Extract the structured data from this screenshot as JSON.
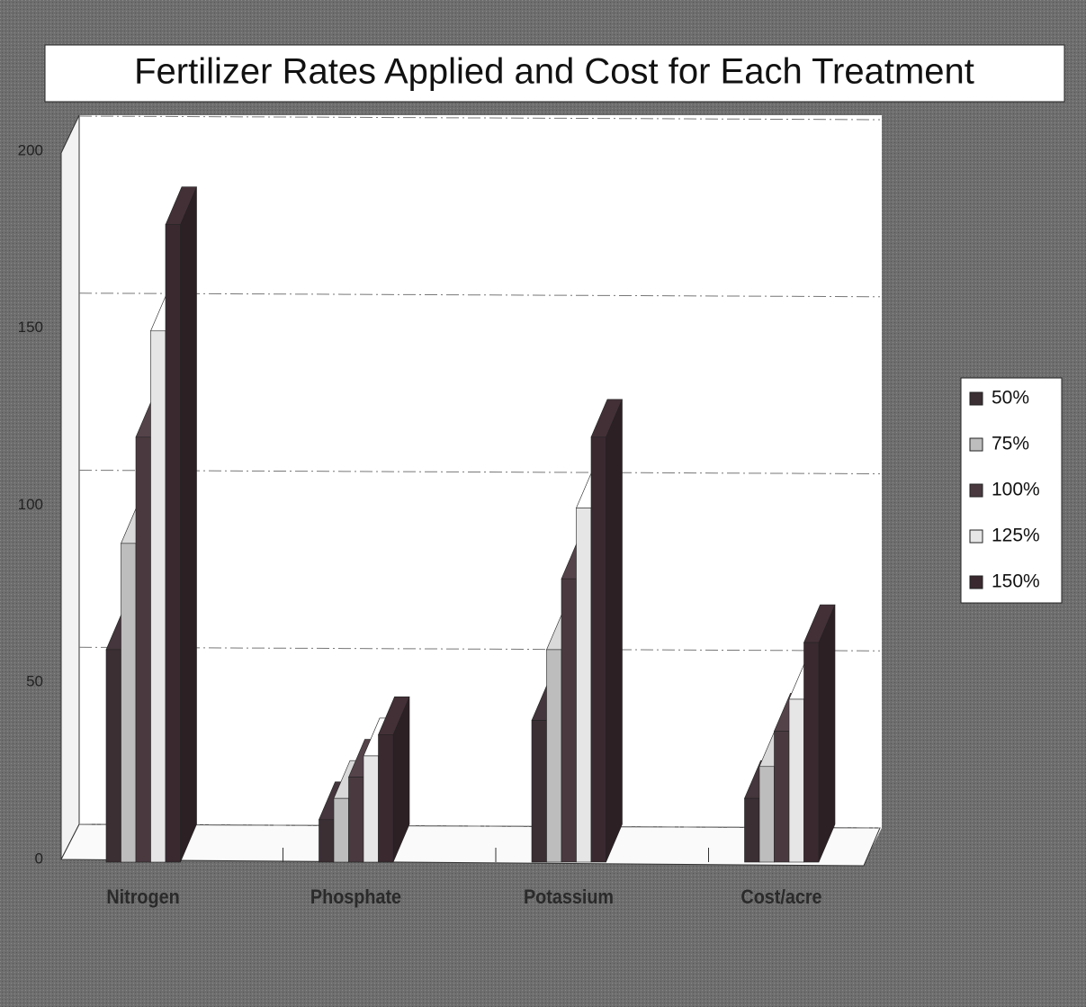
{
  "chart_data": {
    "type": "bar3d",
    "title": "Fertilizer Rates Applied and Cost for Each Treatment",
    "categories": [
      "Nitrogen",
      "Phosphate",
      "Potassium",
      "Cost/acre"
    ],
    "series": [
      {
        "name": "50%",
        "color": "#3b2f34",
        "values": [
          60,
          12,
          40,
          18
        ]
      },
      {
        "name": "75%",
        "color": "#bdbdbd",
        "values": [
          90,
          18,
          60,
          27
        ]
      },
      {
        "name": "100%",
        "color": "#4a3a40",
        "values": [
          120,
          24,
          80,
          37
        ]
      },
      {
        "name": "125%",
        "color": "#e6e6e6",
        "values": [
          150,
          30,
          100,
          46
        ]
      },
      {
        "name": "150%",
        "color": "#3a2a30",
        "values": [
          180,
          36,
          120,
          62
        ]
      }
    ],
    "ylim": [
      0,
      200
    ],
    "yticks": [
      0,
      50,
      100,
      150,
      200
    ],
    "grid": true,
    "legend": "right"
  }
}
